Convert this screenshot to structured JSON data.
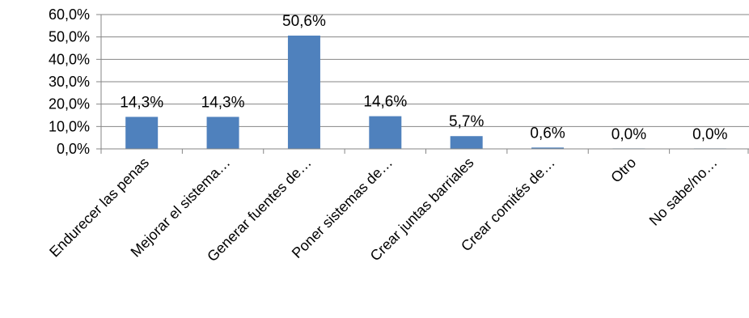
{
  "chart_data": {
    "type": "bar",
    "categories": [
      "Endurecer las penas",
      "Mejorar el sistema…",
      "Generar fuentes de…",
      "Poner sistemas de…",
      "Crear juntas barriales",
      "Crear comités de…",
      "Otro",
      "No sabe/no…"
    ],
    "values": [
      14.3,
      14.3,
      50.6,
      14.6,
      5.7,
      0.6,
      0.0,
      0.0
    ],
    "data_labels": [
      "14,3%",
      "14,3%",
      "50,6%",
      "14,6%",
      "5,7%",
      "0,6%",
      "0,0%",
      "0,0%"
    ],
    "ylim": [
      0,
      60
    ],
    "yticks": [
      0,
      10,
      20,
      30,
      40,
      50,
      60
    ],
    "ytick_labels": [
      "0,0%",
      "10,0%",
      "20,0%",
      "30,0%",
      "40,0%",
      "50,0%",
      "60,0%"
    ],
    "bar_color": "#4F81BD",
    "grid": true,
    "legend": "none"
  }
}
